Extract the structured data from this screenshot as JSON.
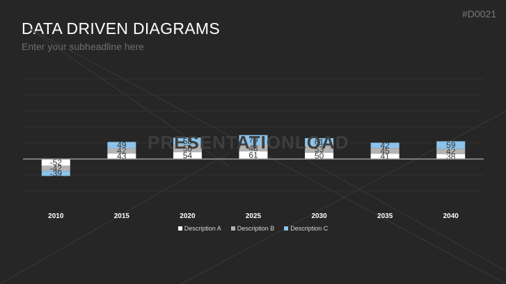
{
  "slide": {
    "title": "DATA DRIVEN DIAGRAMS",
    "subtitle": "Enter your subheadline here",
    "code": "#D0021",
    "watermark": "PRESENTATIONLOAD"
  },
  "chart_data": {
    "type": "bar",
    "stacked": true,
    "categories": [
      "2010",
      "2015",
      "2020",
      "2025",
      "2030",
      "2035",
      "2040"
    ],
    "series": [
      {
        "name": "Description A",
        "color": "#ffffff",
        "values": [
          -52,
          43,
          54,
          61,
          50,
          41,
          38
        ]
      },
      {
        "name": "Description B",
        "color": "#b3b3b3",
        "values": [
          -42,
          42,
          56,
          48,
          53,
          45,
          42
        ]
      },
      {
        "name": "Description C",
        "color": "#8cc3eb",
        "values": [
          -39,
          49,
          58,
          79,
          61,
          42,
          59
        ]
      }
    ],
    "legend": "bottom",
    "grid": true
  }
}
